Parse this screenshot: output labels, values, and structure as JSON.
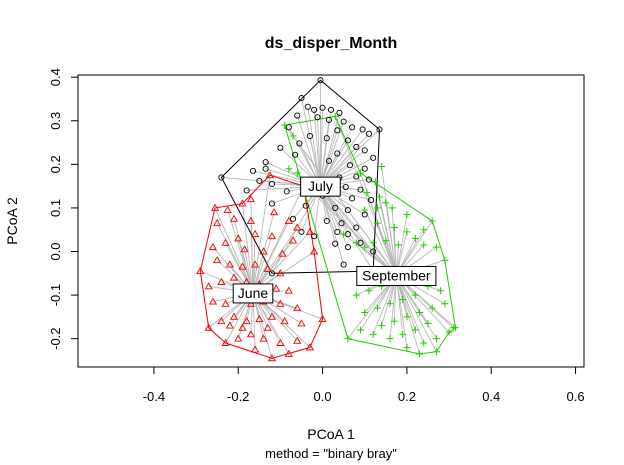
{
  "chart_data": {
    "type": "scatter",
    "title": "ds_disper_Month",
    "xlabel": "PCoA 1",
    "ylabel": "PCoA 2",
    "sub": "method = \"binary bray\"",
    "xlim": [
      -0.58,
      0.62
    ],
    "ylim": [
      -0.265,
      0.405
    ],
    "xticks": [
      "-0.4",
      "-0.2",
      "0.0",
      "0.2",
      "0.4",
      "0.6"
    ],
    "yticks": [
      "-0.2",
      "-0.1",
      "0.0",
      "0.1",
      "0.2",
      "0.3",
      "0.4"
    ],
    "grid": false,
    "legend": "none",
    "series": [
      {
        "label": "July",
        "color": "#000000",
        "marker": "circle",
        "centroid": [
          -0.005,
          0.15
        ],
        "hull": [
          [
            -0.005,
            0.393
          ],
          [
            0.135,
            0.28
          ],
          [
            0.12,
            -0.045
          ],
          [
            -0.12,
            -0.05
          ],
          [
            -0.24,
            0.17
          ]
        ],
        "points": [
          [
            -0.005,
            0.393
          ],
          [
            -0.05,
            0.352
          ],
          [
            -0.035,
            0.332
          ],
          [
            -0.02,
            0.325
          ],
          [
            0.0,
            0.33
          ],
          [
            0.02,
            0.325
          ],
          [
            0.04,
            0.318
          ],
          [
            -0.06,
            0.312
          ],
          [
            -0.012,
            0.308
          ],
          [
            0.015,
            0.302
          ],
          [
            0.05,
            0.298
          ],
          [
            0.07,
            0.285
          ],
          [
            0.035,
            0.278
          ],
          [
            -0.08,
            0.285
          ],
          [
            0.095,
            0.28
          ],
          [
            0.135,
            0.28
          ],
          [
            0.11,
            0.27
          ],
          [
            -0.03,
            0.265
          ],
          [
            0.01,
            0.26
          ],
          [
            0.06,
            0.255
          ],
          [
            -0.055,
            0.248
          ],
          [
            0.08,
            0.24
          ],
          [
            0.1,
            0.232
          ],
          [
            -0.1,
            0.238
          ],
          [
            0.035,
            0.225
          ],
          [
            -0.065,
            0.222
          ],
          [
            0.12,
            0.215
          ],
          [
            0.015,
            0.208
          ],
          [
            -0.135,
            0.205
          ],
          [
            0.065,
            0.198
          ],
          [
            0.1,
            0.19
          ],
          [
            -0.165,
            0.185
          ],
          [
            -0.135,
            0.19
          ],
          [
            -0.24,
            0.17
          ],
          [
            0.04,
            0.17
          ],
          [
            0.08,
            0.172
          ],
          [
            0.11,
            0.165
          ],
          [
            -0.15,
            0.162
          ],
          [
            -0.12,
            0.155
          ],
          [
            0.02,
            0.152
          ],
          [
            0.055,
            0.148
          ],
          [
            0.09,
            0.142
          ],
          [
            -0.18,
            0.14
          ],
          [
            -0.085,
            0.138
          ],
          [
            0.0,
            0.128
          ],
          [
            0.07,
            0.122
          ],
          [
            0.115,
            0.118
          ],
          [
            -0.12,
            0.11
          ],
          [
            -0.04,
            0.105
          ],
          [
            0.03,
            0.1
          ],
          [
            0.06,
            0.095
          ],
          [
            0.1,
            0.085
          ],
          [
            -0.07,
            0.075
          ],
          [
            0.01,
            0.07
          ],
          [
            0.045,
            0.065
          ],
          [
            0.08,
            0.055
          ],
          [
            0.035,
            0.045
          ],
          [
            0.06,
            0.04
          ],
          [
            -0.02,
            0.035
          ],
          [
            0.09,
            0.02
          ],
          [
            0.03,
            0.018
          ],
          [
            0.06,
            0.01
          ],
          [
            0.12,
            0.0
          ],
          [
            -0.12,
            -0.05
          ],
          [
            0.12,
            -0.045
          ],
          [
            0.05,
            -0.03
          ],
          [
            -0.05,
            0.045
          ]
        ]
      },
      {
        "label": "June",
        "color": "#ee0000",
        "marker": "triangle",
        "centroid": [
          -0.165,
          -0.095
        ],
        "hull": [
          [
            -0.19,
            0.11
          ],
          [
            -0.125,
            0.175
          ],
          [
            -0.045,
            0.15
          ],
          [
            -0.02,
            0.0
          ],
          [
            0.0,
            -0.155
          ],
          [
            -0.03,
            -0.22
          ],
          [
            -0.12,
            -0.245
          ],
          [
            -0.23,
            -0.21
          ],
          [
            -0.27,
            -0.175
          ],
          [
            -0.29,
            -0.045
          ],
          [
            -0.255,
            0.1
          ]
        ],
        "points": [
          [
            -0.19,
            0.11
          ],
          [
            -0.125,
            0.175
          ],
          [
            -0.045,
            0.15
          ],
          [
            -0.17,
            0.12
          ],
          [
            -0.255,
            0.1
          ],
          [
            -0.225,
            0.095
          ],
          [
            -0.115,
            0.09
          ],
          [
            -0.08,
            0.07
          ],
          [
            -0.06,
            0.055
          ],
          [
            -0.21,
            0.075
          ],
          [
            -0.17,
            0.07
          ],
          [
            -0.25,
            0.065
          ],
          [
            -0.03,
            0.045
          ],
          [
            -0.02,
            0.0
          ],
          [
            -0.07,
            0.025
          ],
          [
            -0.12,
            0.035
          ],
          [
            -0.16,
            0.04
          ],
          [
            -0.2,
            0.03
          ],
          [
            -0.23,
            0.02
          ],
          [
            -0.26,
            0.01
          ],
          [
            -0.185,
            0.005
          ],
          [
            -0.14,
            0.0
          ],
          [
            -0.095,
            -0.005
          ],
          [
            -0.29,
            -0.045
          ],
          [
            -0.25,
            -0.02
          ],
          [
            -0.22,
            -0.03
          ],
          [
            -0.19,
            -0.035
          ],
          [
            -0.16,
            -0.03
          ],
          [
            -0.13,
            -0.04
          ],
          [
            -0.1,
            -0.05
          ],
          [
            -0.27,
            -0.08
          ],
          [
            -0.24,
            -0.07
          ],
          [
            -0.21,
            -0.06
          ],
          [
            -0.18,
            -0.07
          ],
          [
            -0.15,
            -0.075
          ],
          [
            -0.11,
            -0.085
          ],
          [
            -0.08,
            -0.09
          ],
          [
            -0.26,
            -0.115
          ],
          [
            -0.23,
            -0.12
          ],
          [
            -0.2,
            -0.11
          ],
          [
            -0.17,
            -0.12
          ],
          [
            -0.14,
            -0.115
          ],
          [
            -0.1,
            -0.12
          ],
          [
            -0.06,
            -0.13
          ],
          [
            -0.27,
            -0.175
          ],
          [
            -0.24,
            -0.16
          ],
          [
            -0.21,
            -0.15
          ],
          [
            -0.18,
            -0.16
          ],
          [
            -0.15,
            -0.155
          ],
          [
            -0.12,
            -0.15
          ],
          [
            -0.09,
            -0.16
          ],
          [
            -0.05,
            -0.165
          ],
          [
            0.0,
            -0.155
          ],
          [
            -0.23,
            -0.21
          ],
          [
            -0.2,
            -0.2
          ],
          [
            -0.17,
            -0.19
          ],
          [
            -0.14,
            -0.2
          ],
          [
            -0.1,
            -0.21
          ],
          [
            -0.06,
            -0.205
          ],
          [
            -0.03,
            -0.22
          ],
          [
            -0.12,
            -0.245
          ],
          [
            -0.08,
            -0.235
          ],
          [
            -0.16,
            -0.225
          ],
          [
            -0.22,
            -0.17
          ],
          [
            -0.19,
            -0.175
          ],
          [
            -0.13,
            -0.175
          ]
        ]
      },
      {
        "label": "September",
        "color": "#22cc00",
        "marker": "plus",
        "centroid": [
          0.175,
          -0.055
        ],
        "hull": [
          [
            -0.09,
            0.29
          ],
          [
            0.03,
            0.31
          ],
          [
            0.09,
            0.18
          ],
          [
            0.26,
            0.07
          ],
          [
            0.29,
            -0.02
          ],
          [
            0.315,
            -0.175
          ],
          [
            0.3,
            -0.185
          ],
          [
            0.27,
            -0.23
          ],
          [
            0.23,
            -0.235
          ],
          [
            0.06,
            -0.2
          ]
        ],
        "points": [
          [
            -0.09,
            0.29
          ],
          [
            0.03,
            0.31
          ],
          [
            -0.07,
            0.265
          ],
          [
            0.09,
            0.18
          ],
          [
            0.14,
            0.195
          ],
          [
            0.125,
            0.16
          ],
          [
            -0.08,
            0.19
          ],
          [
            -0.06,
            0.18
          ],
          [
            0.105,
            0.135
          ],
          [
            0.135,
            0.125
          ],
          [
            0.15,
            0.112
          ],
          [
            0.165,
            0.1
          ],
          [
            0.2,
            0.085
          ],
          [
            0.13,
            0.1
          ],
          [
            0.1,
            0.095
          ],
          [
            0.26,
            0.07
          ],
          [
            0.24,
            0.05
          ],
          [
            0.13,
            0.065
          ],
          [
            0.17,
            0.055
          ],
          [
            0.2,
            0.045
          ],
          [
            0.22,
            0.03
          ],
          [
            0.15,
            0.025
          ],
          [
            0.12,
            0.02
          ],
          [
            0.18,
            0.015
          ],
          [
            0.24,
            0.015
          ],
          [
            0.27,
            0.01
          ],
          [
            0.1,
            0.01
          ],
          [
            0.05,
            0.04
          ],
          [
            0.08,
            0.02
          ],
          [
            0.29,
            -0.02
          ],
          [
            0.26,
            -0.04
          ],
          [
            0.23,
            -0.05
          ],
          [
            0.2,
            -0.06
          ],
          [
            0.17,
            -0.065
          ],
          [
            0.14,
            -0.08
          ],
          [
            0.11,
            -0.09
          ],
          [
            0.08,
            -0.1
          ],
          [
            0.25,
            -0.08
          ],
          [
            0.28,
            -0.09
          ],
          [
            0.22,
            -0.1
          ],
          [
            0.19,
            -0.11
          ],
          [
            0.16,
            -0.12
          ],
          [
            0.13,
            -0.13
          ],
          [
            0.1,
            -0.14
          ],
          [
            0.29,
            -0.12
          ],
          [
            0.26,
            -0.13
          ],
          [
            0.23,
            -0.14
          ],
          [
            0.2,
            -0.15
          ],
          [
            0.17,
            -0.16
          ],
          [
            0.14,
            -0.17
          ],
          [
            0.31,
            -0.175
          ],
          [
            0.315,
            -0.175
          ],
          [
            0.3,
            -0.185
          ],
          [
            0.25,
            -0.165
          ],
          [
            0.22,
            -0.18
          ],
          [
            0.19,
            -0.19
          ],
          [
            0.27,
            -0.2
          ],
          [
            0.24,
            -0.21
          ],
          [
            0.27,
            -0.23
          ],
          [
            0.23,
            -0.235
          ],
          [
            0.06,
            -0.2
          ],
          [
            0.09,
            -0.18
          ],
          [
            0.12,
            -0.19
          ],
          [
            0.16,
            -0.2
          ],
          [
            0.2,
            -0.22
          ]
        ]
      }
    ]
  }
}
